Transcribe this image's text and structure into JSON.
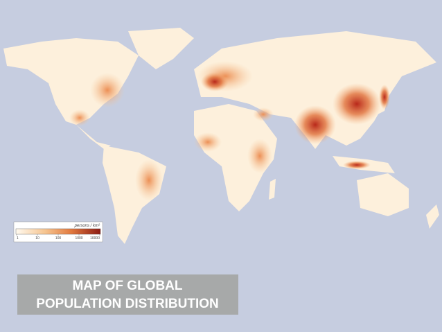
{
  "title": {
    "lines": [
      "MAP OF GLOBAL",
      "POPULATION DISTRIBUTION"
    ]
  },
  "legend": {
    "label": "persons / km²",
    "ticks": [
      1,
      10,
      100,
      1000,
      10000
    ]
  }
}
